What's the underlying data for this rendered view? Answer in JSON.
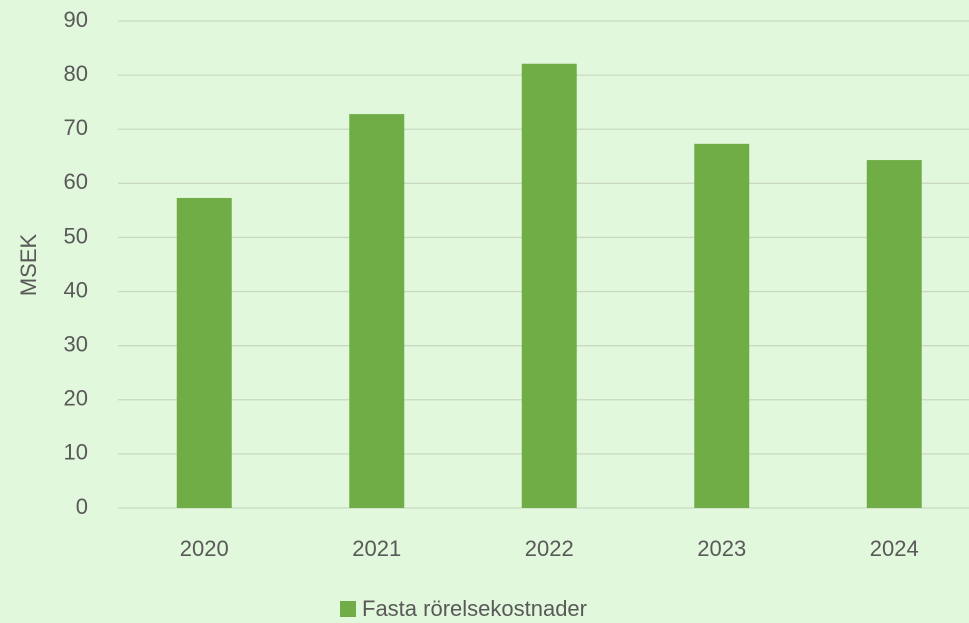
{
  "chart_data": {
    "type": "bar",
    "y_label": "MSEK",
    "categories": [
      "2020",
      "2021",
      "2022",
      "2023",
      "2024"
    ],
    "series": [
      {
        "name": "Fasta rörelsekostnader",
        "color": "#70ad47",
        "values": [
          57.3,
          72.8,
          82.1,
          67.3,
          64.3
        ]
      }
    ],
    "ylim": [
      0,
      90
    ],
    "yticks": [
      0,
      10,
      20,
      30,
      40,
      50,
      60,
      70,
      80,
      90
    ],
    "grid": true,
    "legend": "bottom"
  }
}
